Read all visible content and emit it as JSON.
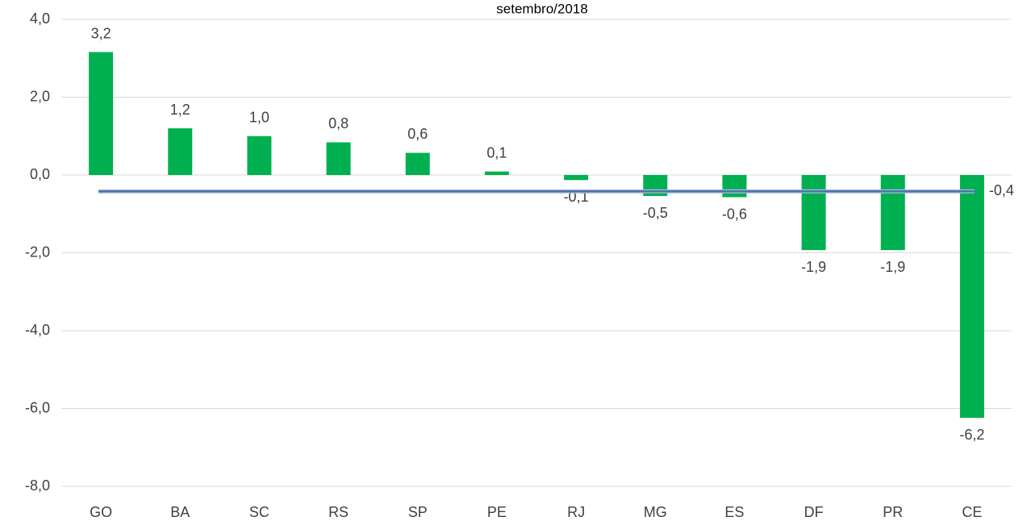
{
  "chart_data": {
    "type": "bar",
    "title": "setembro/2018",
    "categories": [
      "GO",
      "BA",
      "SC",
      "RS",
      "SP",
      "PE",
      "RJ",
      "MG",
      "ES",
      "DF",
      "PR",
      "CE"
    ],
    "values": [
      3.16,
      1.2,
      1.0,
      0.84,
      0.57,
      0.09,
      -0.13,
      -0.54,
      -0.57,
      -1.93,
      -1.93,
      -6.24
    ],
    "value_labels": [
      "3,2",
      "1,2",
      "1,0",
      "0,8",
      "0,6",
      "0,1",
      "-0,1",
      "-0,5",
      "-0,6",
      "-1,9",
      "-1,9",
      "-6,2"
    ],
    "color": "#00b050",
    "reference_line": {
      "value": -0.42,
      "label": "-0,4",
      "color": "#4a72b0"
    },
    "ylim": [
      -8,
      4
    ],
    "yticks": [
      {
        "value": -8,
        "label": "-8,0"
      },
      {
        "value": -6,
        "label": "-6,0"
      },
      {
        "value": -4,
        "label": "-4,0"
      },
      {
        "value": -2,
        "label": "-2,0"
      },
      {
        "value": 0,
        "label": "0,0"
      },
      {
        "value": 2,
        "label": "2,0"
      },
      {
        "value": 4,
        "label": "4,0"
      }
    ],
    "grid": true
  }
}
